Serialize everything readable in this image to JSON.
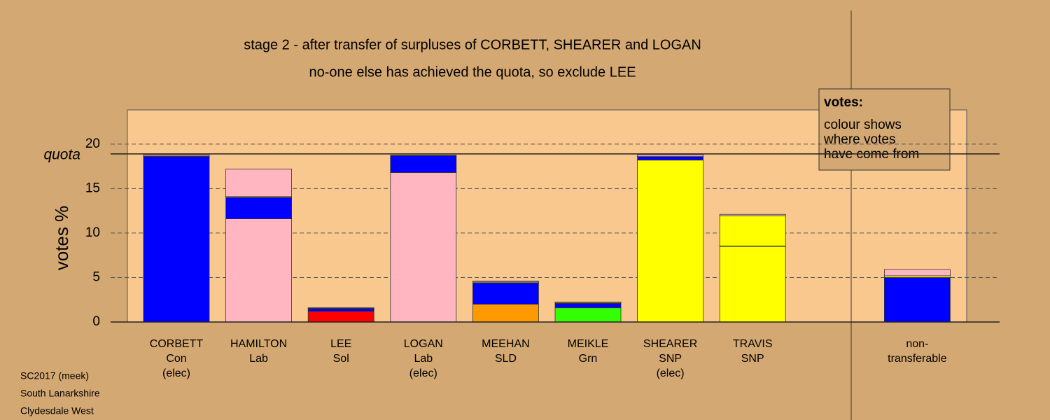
{
  "chart_data": {
    "type": "bar",
    "stacked": true,
    "title": "stage 2 - after transfer of surpluses of CORBETT, SHEARER and LOGAN",
    "subtitle": "no-one else has achieved the quota, so exclude LEE",
    "ylabel": "votes %",
    "categories": [
      [
        "CORBETT",
        "Con",
        "(elec)"
      ],
      [
        "HAMILTON",
        "Lab"
      ],
      [
        "LEE",
        "Sol"
      ],
      [
        "LOGAN",
        "Lab",
        "(elec)"
      ],
      [
        "MEEHAN",
        "SLD"
      ],
      [
        "MEIKLE",
        "Grn"
      ],
      [
        "SHEARER",
        "SNP",
        "(elec)"
      ],
      [
        "TRAVIS",
        "SNP"
      ],
      [
        "non-",
        "transferable"
      ]
    ],
    "series": [
      {
        "colors": [
          "#0000ff",
          "#ffb6c1",
          "#ff0000",
          "#ffb6c1",
          "#ff9900",
          "#33ff00",
          "#ffff00",
          "#ffff00",
          null
        ],
        "values": [
          18.6,
          11.6,
          1.2,
          16.8,
          2.0,
          1.6,
          18.2,
          8.5,
          null
        ]
      },
      {
        "color": "#0000ff",
        "values": [
          0,
          2.4,
          0.3,
          1.9,
          2.4,
          0.5,
          0.4,
          0.05,
          5.0
        ]
      },
      {
        "color": "#ffff00",
        "values": [
          0.05,
          0.1,
          0.05,
          0.05,
          0.1,
          0.1,
          0,
          3.4,
          0.2
        ]
      },
      {
        "color": "#ffb6c1",
        "values": [
          0.15,
          3.1,
          0.05,
          0,
          0.1,
          0.05,
          0.2,
          0.15,
          0.7
        ]
      }
    ],
    "ylim": [
      0,
      24
    ],
    "yticks": [
      0,
      5,
      10,
      15,
      20
    ],
    "grid": true,
    "quota": {
      "label": "quota",
      "value": 18.9
    },
    "annotation": {
      "heading": "votes:",
      "lines": [
        "colour shows",
        "where votes",
        "have come from"
      ]
    },
    "source": [
      "SC2017 (meek)",
      "South Lanarkshire",
      "Clydesdale West"
    ]
  }
}
